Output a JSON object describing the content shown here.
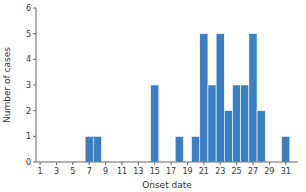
{
  "chart_data": {
    "type": "bar",
    "x": [
      7,
      8,
      15,
      18,
      20,
      21,
      22,
      23,
      24,
      25,
      26,
      27,
      28,
      31
    ],
    "values": [
      1,
      1,
      3,
      1,
      1,
      5,
      3,
      5,
      2,
      3,
      3,
      5,
      2,
      1
    ],
    "color": "#3B7EC4",
    "xlim": [
      0.5,
      32.5
    ],
    "ylim": [
      0,
      6
    ],
    "xticks": [
      1,
      3,
      5,
      7,
      9,
      11,
      13,
      15,
      17,
      19,
      21,
      23,
      25,
      27,
      29,
      31
    ],
    "yticks": [
      0,
      1,
      2,
      3,
      4,
      5,
      6
    ],
    "xlabel": "Onset date",
    "ylabel": "Number of cases",
    "grid": false
  }
}
